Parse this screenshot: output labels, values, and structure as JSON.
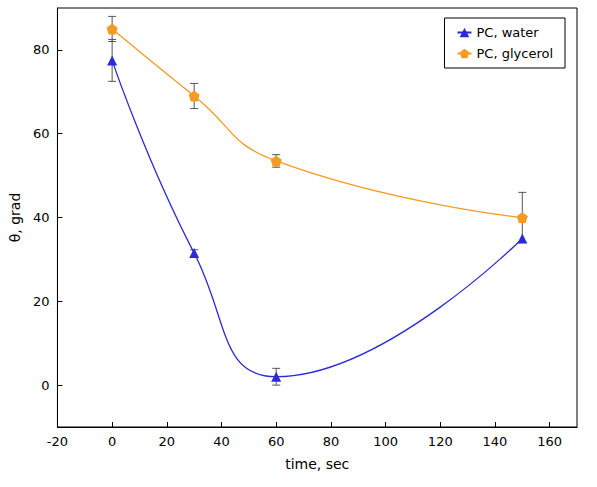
{
  "chart_data": {
    "type": "line",
    "x_label": "time, sec",
    "y_label": "θ, grad",
    "x": [
      0,
      30,
      60,
      150
    ],
    "series": [
      {
        "name": "PC, water",
        "color": "#2b2bd6",
        "marker": "triangle",
        "values": [
          77.5,
          31.5,
          2,
          35
        ],
        "errors": [
          5,
          0.8,
          2,
          0
        ]
      },
      {
        "name": "PC, glycerol",
        "color": "#f59a23",
        "marker": "pentagon",
        "values": [
          85,
          69,
          53.5,
          40
        ],
        "errors": [
          3,
          3,
          1.5,
          6
        ]
      }
    ],
    "xlim": [
      -20,
      170
    ],
    "xticks": [
      -20,
      0,
      20,
      40,
      60,
      80,
      100,
      120,
      140,
      160
    ],
    "ylim": [
      -10,
      90
    ],
    "yticks": [
      0,
      20,
      40,
      60,
      80
    ],
    "grid": false,
    "legend": "upper right"
  }
}
